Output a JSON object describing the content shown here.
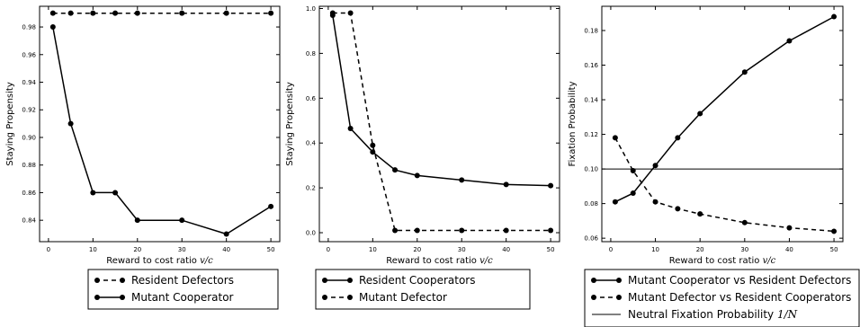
{
  "chart_data": [
    {
      "type": "line",
      "xlabel": "Reward to cost ratio",
      "xlabel_var": "v/c",
      "ylabel": "Staying Propensity",
      "xlim": [
        -2,
        52
      ],
      "ylim": [
        0.8245,
        0.995
      ],
      "xticks": [
        0,
        10,
        20,
        30,
        40,
        50
      ],
      "yticks": [
        0.84,
        0.86,
        0.88,
        0.9,
        0.92,
        0.94,
        0.96,
        0.98
      ],
      "x": [
        1,
        5,
        10,
        15,
        20,
        30,
        40,
        50
      ],
      "series": [
        {
          "name": "Resident Defectors",
          "style": "dashed",
          "values": [
            0.99,
            0.99,
            0.99,
            0.99,
            0.99,
            0.99,
            0.99,
            0.99
          ]
        },
        {
          "name": "Mutant Cooperator",
          "style": "solid",
          "values": [
            0.98,
            0.91,
            0.86,
            0.86,
            0.84,
            0.84,
            0.83,
            0.85
          ]
        }
      ],
      "legend": "below"
    },
    {
      "type": "line",
      "xlabel": "Reward to cost ratio",
      "xlabel_var": "v/c",
      "ylabel": "Staying Propensity",
      "xlim": [
        -2,
        52
      ],
      "ylim": [
        -0.04,
        1.01
      ],
      "xticks": [
        0,
        10,
        20,
        30,
        40,
        50
      ],
      "yticks": [
        0.0,
        0.2,
        0.4,
        0.6,
        0.8,
        1.0
      ],
      "x": [
        1,
        5,
        10,
        15,
        20,
        30,
        40,
        50
      ],
      "series": [
        {
          "name": "Resident Cooperators",
          "style": "solid",
          "values": [
            0.97,
            0.465,
            0.36,
            0.28,
            0.255,
            0.235,
            0.215,
            0.21
          ]
        },
        {
          "name": "Mutant Defector",
          "style": "dashed",
          "values": [
            0.98,
            0.98,
            0.39,
            0.01,
            0.01,
            0.01,
            0.01,
            0.01
          ]
        }
      ],
      "legend": "below"
    },
    {
      "type": "line",
      "xlabel": "Reward to cost ratio",
      "xlabel_var": "v/c",
      "ylabel": "Fixation Probability",
      "xlim": [
        -2,
        52
      ],
      "ylim": [
        0.058,
        0.194
      ],
      "xticks": [
        0,
        10,
        20,
        30,
        40,
        50
      ],
      "yticks": [
        0.06,
        0.08,
        0.1,
        0.12,
        0.14,
        0.16,
        0.18
      ],
      "x": [
        1,
        5,
        10,
        15,
        20,
        30,
        40,
        50
      ],
      "series": [
        {
          "name": "Mutant Cooperator vs Resident Defectors",
          "style": "solid",
          "values": [
            0.081,
            0.086,
            0.102,
            0.118,
            0.132,
            0.156,
            0.174,
            0.188
          ]
        },
        {
          "name": "Mutant Defector vs Resident Cooperators",
          "style": "dashed",
          "values": [
            0.118,
            0.099,
            0.081,
            0.077,
            0.074,
            0.069,
            0.066,
            0.064
          ]
        }
      ],
      "hline": {
        "name": "Neutral Fixation Probability",
        "name_var": "1/N",
        "value": 0.1
      },
      "legend": "below"
    }
  ]
}
